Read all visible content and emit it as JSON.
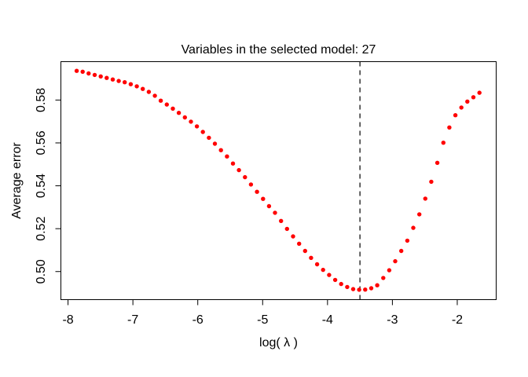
{
  "window": {
    "background": "#FFFFFF"
  },
  "chart_data": {
    "type": "scatter",
    "title": "Variables in the selected model: 27",
    "xlabel": "log( λ )",
    "ylabel": "Average error",
    "xlim": [
      -8.11,
      -1.4
    ],
    "ylim": [
      0.4869,
      0.5979
    ],
    "x_ticks": [
      -8,
      -7,
      -6,
      -5,
      -4,
      -3,
      -2
    ],
    "x_tick_labels": [
      "-8",
      "-7",
      "-6",
      "-5",
      "-4",
      "-3",
      "-2"
    ],
    "y_ticks": [
      0.5,
      0.52,
      0.54,
      0.56,
      0.58
    ],
    "y_tick_labels": [
      "0.50",
      "0.52",
      "0.54",
      "0.56",
      "0.58"
    ],
    "grid": false,
    "legend": null,
    "point_color": "#FF0000",
    "point_radius": 2.7,
    "frame_color": "#000000",
    "vline": {
      "x": -3.5,
      "style": "dashed",
      "color": "#000000"
    },
    "series": [
      {
        "name": "average-cv-error",
        "points": [
          [
            -7.867,
            0.5936
          ],
          [
            -7.774,
            0.5932
          ],
          [
            -7.682,
            0.5924
          ],
          [
            -7.589,
            0.5917
          ],
          [
            -7.496,
            0.591
          ],
          [
            -7.404,
            0.5903
          ],
          [
            -7.311,
            0.5896
          ],
          [
            -7.218,
            0.5889
          ],
          [
            -7.126,
            0.5883
          ],
          [
            -7.033,
            0.5874
          ],
          [
            -6.94,
            0.5864
          ],
          [
            -6.848,
            0.5852
          ],
          [
            -6.755,
            0.5838
          ],
          [
            -6.662,
            0.582
          ],
          [
            -6.57,
            0.5797
          ],
          [
            -6.477,
            0.5779
          ],
          [
            -6.384,
            0.576
          ],
          [
            -6.292,
            0.574
          ],
          [
            -6.199,
            0.5719
          ],
          [
            -6.106,
            0.5699
          ],
          [
            -6.014,
            0.5677
          ],
          [
            -5.921,
            0.5651
          ],
          [
            -5.828,
            0.5624
          ],
          [
            -5.736,
            0.5596
          ],
          [
            -5.643,
            0.5566
          ],
          [
            -5.55,
            0.5537
          ],
          [
            -5.458,
            0.5504
          ],
          [
            -5.365,
            0.5473
          ],
          [
            -5.272,
            0.544
          ],
          [
            -5.18,
            0.5406
          ],
          [
            -5.087,
            0.5372
          ],
          [
            -4.994,
            0.5339
          ],
          [
            -4.902,
            0.5305
          ],
          [
            -4.809,
            0.5274
          ],
          [
            -4.716,
            0.5236
          ],
          [
            -4.624,
            0.5199
          ],
          [
            -4.531,
            0.5164
          ],
          [
            -4.438,
            0.513
          ],
          [
            -4.346,
            0.5096
          ],
          [
            -4.253,
            0.5064
          ],
          [
            -4.16,
            0.5034
          ],
          [
            -4.068,
            0.5008
          ],
          [
            -3.975,
            0.4984
          ],
          [
            -3.882,
            0.4961
          ],
          [
            -3.79,
            0.4942
          ],
          [
            -3.697,
            0.4928
          ],
          [
            -3.604,
            0.4918
          ],
          [
            -3.512,
            0.4915
          ],
          [
            -3.419,
            0.4916
          ],
          [
            -3.326,
            0.4922
          ],
          [
            -3.234,
            0.4936
          ],
          [
            -3.141,
            0.497
          ],
          [
            -3.048,
            0.5006
          ],
          [
            -2.956,
            0.5048
          ],
          [
            -2.863,
            0.5096
          ],
          [
            -2.77,
            0.5144
          ],
          [
            -2.678,
            0.5204
          ],
          [
            -2.585,
            0.5267
          ],
          [
            -2.492,
            0.534
          ],
          [
            -2.4,
            0.5419
          ],
          [
            -2.307,
            0.5507
          ],
          [
            -2.214,
            0.5601
          ],
          [
            -2.122,
            0.5672
          ],
          [
            -2.029,
            0.5729
          ],
          [
            -1.936,
            0.5765
          ],
          [
            -1.844,
            0.5793
          ],
          [
            -1.751,
            0.5813
          ],
          [
            -1.658,
            0.5834
          ]
        ]
      }
    ]
  }
}
